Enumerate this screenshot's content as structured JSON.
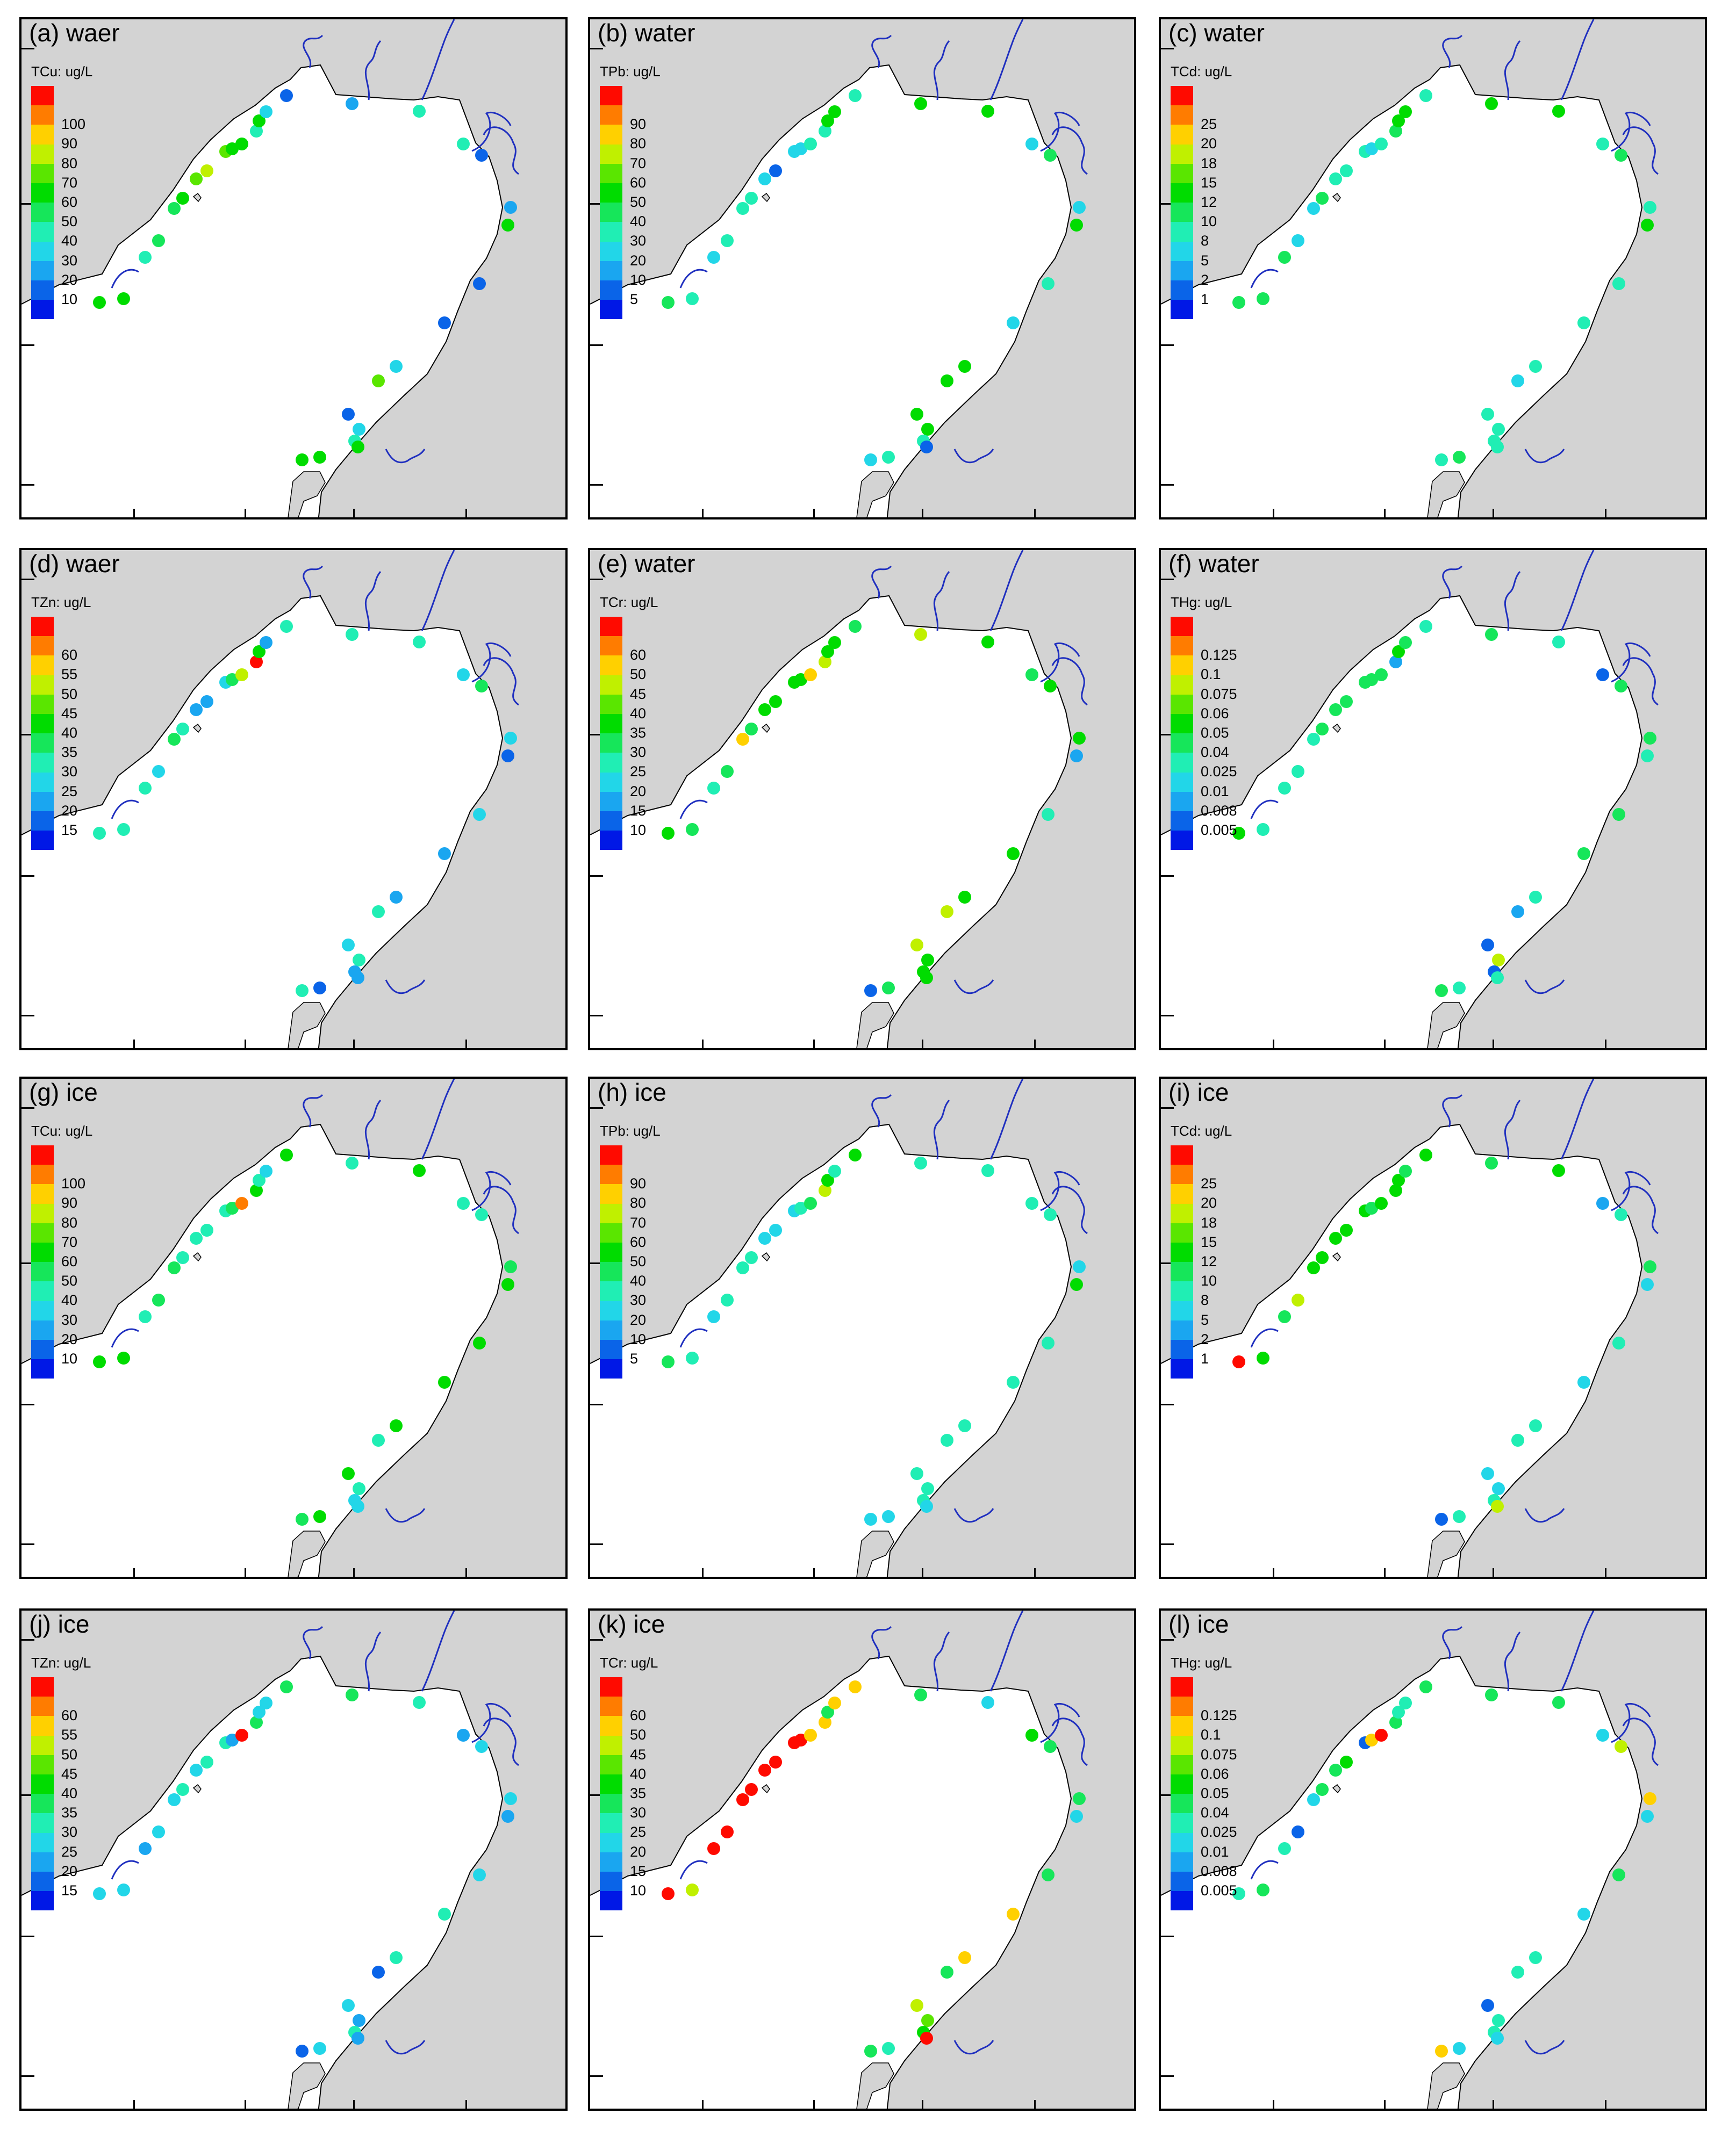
{
  "colors": {
    "land": "#d3d3d3",
    "sea": "#ffffff",
    "coast": "#000000",
    "river": "#1f2fbf",
    "legend_ramp": [
      "#0018e6",
      "#0a64e8",
      "#1aa6f0",
      "#22d6e8",
      "#20eeb4",
      "#16e65a",
      "#00dc00",
      "#5ae600",
      "#c0f000",
      "#ffd000",
      "#ff7c00",
      "#ff0a00"
    ]
  },
  "panels": [
    {
      "title": "(a) waer",
      "variable": "TCu: ug/L",
      "legend_labels": [
        "10",
        "20",
        "30",
        "40",
        "50",
        "60",
        "70",
        "80",
        "90",
        "100"
      ]
    },
    {
      "title": "(b) water",
      "variable": "TPb: ug/L",
      "legend_labels": [
        "5",
        "10",
        "20",
        "30",
        "40",
        "50",
        "60",
        "70",
        "80",
        "90"
      ]
    },
    {
      "title": "(c) water",
      "variable": "TCd: ug/L",
      "legend_labels": [
        "1",
        "2",
        "5",
        "8",
        "10",
        "12",
        "15",
        "18",
        "20",
        "25"
      ]
    },
    {
      "title": "(d) waer",
      "variable": "TZn: ug/L",
      "legend_labels": [
        "15",
        "20",
        "25",
        "30",
        "35",
        "40",
        "45",
        "50",
        "55",
        "60"
      ]
    },
    {
      "title": "(e) water",
      "variable": "TCr: ug/L",
      "legend_labels": [
        "10",
        "15",
        "20",
        "25",
        "30",
        "35",
        "40",
        "45",
        "50",
        "60"
      ]
    },
    {
      "title": "(f) water",
      "variable": "THg: ug/L",
      "legend_labels": [
        "0.005",
        "0.008",
        "0.01",
        "0.025",
        "0.04",
        "0.05",
        "0.06",
        "0.075",
        "0.1",
        "0.125"
      ]
    },
    {
      "title": "(g) ice",
      "variable": "TCu: ug/L",
      "legend_labels": [
        "10",
        "20",
        "30",
        "40",
        "50",
        "60",
        "70",
        "80",
        "90",
        "100"
      ]
    },
    {
      "title": "(h) ice",
      "variable": "TPb: ug/L",
      "legend_labels": [
        "5",
        "10",
        "20",
        "30",
        "40",
        "50",
        "60",
        "70",
        "80",
        "90"
      ]
    },
    {
      "title": "(i) ice",
      "variable": "TCd: ug/L",
      "legend_labels": [
        "1",
        "2",
        "5",
        "8",
        "10",
        "12",
        "15",
        "18",
        "20",
        "25"
      ]
    },
    {
      "title": "(j) ice",
      "variable": "TZn: ug/L",
      "legend_labels": [
        "15",
        "20",
        "25",
        "30",
        "35",
        "40",
        "45",
        "50",
        "55",
        "60"
      ]
    },
    {
      "title": "(k) ice",
      "variable": "TCr: ug/L",
      "legend_labels": [
        "10",
        "15",
        "20",
        "25",
        "30",
        "35",
        "40",
        "45",
        "50",
        "60"
      ]
    },
    {
      "title": "(l) ice",
      "variable": "THg: ug/L",
      "legend_labels": [
        "0.005",
        "0.008",
        "0.01",
        "0.025",
        "0.04",
        "0.05",
        "0.06",
        "0.075",
        "0.1",
        "0.125"
      ]
    }
  ],
  "station_levels": [
    [
      6,
      6,
      4,
      5,
      5,
      6,
      7,
      8,
      7,
      6,
      6,
      4,
      6,
      3,
      1,
      2,
      4,
      4,
      1,
      2,
      6,
      1,
      1,
      3,
      7,
      1,
      3,
      4,
      6,
      6,
      6
    ],
    [
      5,
      4,
      3,
      4,
      4,
      4,
      3,
      1,
      3,
      3,
      4,
      4,
      6,
      6,
      4,
      6,
      6,
      3,
      5,
      3,
      6,
      4,
      3,
      6,
      6,
      6,
      6,
      4,
      1,
      3,
      4
    ],
    [
      5,
      5,
      5,
      3,
      3,
      5,
      4,
      4,
      4,
      3,
      4,
      5,
      6,
      6,
      4,
      6,
      6,
      4,
      5,
      4,
      6,
      4,
      4,
      4,
      3,
      4,
      4,
      4,
      4,
      4,
      5
    ],
    [
      4,
      4,
      4,
      3,
      5,
      4,
      2,
      2,
      3,
      5,
      8,
      11,
      6,
      2,
      4,
      4,
      4,
      3,
      5,
      3,
      1,
      3,
      2,
      2,
      4,
      3,
      4,
      2,
      2,
      4,
      1
    ],
    [
      6,
      5,
      4,
      5,
      9,
      5,
      6,
      6,
      6,
      6,
      9,
      8,
      6,
      6,
      5,
      8,
      6,
      5,
      6,
      6,
      2,
      4,
      6,
      6,
      8,
      8,
      6,
      6,
      6,
      1,
      5
    ],
    [
      6,
      4,
      4,
      4,
      4,
      5,
      5,
      5,
      5,
      5,
      5,
      2,
      6,
      5,
      4,
      5,
      4,
      1,
      5,
      5,
      4,
      5,
      5,
      4,
      2,
      1,
      8,
      1,
      4,
      5,
      4
    ],
    [
      6,
      6,
      4,
      5,
      5,
      4,
      4,
      4,
      4,
      5,
      10,
      6,
      4,
      3,
      6,
      4,
      6,
      4,
      4,
      5,
      6,
      6,
      6,
      6,
      4,
      6,
      4,
      3,
      3,
      5,
      6
    ],
    [
      5,
      4,
      3,
      4,
      4,
      4,
      3,
      3,
      3,
      4,
      5,
      8,
      6,
      4,
      6,
      4,
      4,
      4,
      4,
      3,
      6,
      4,
      4,
      4,
      4,
      4,
      4,
      4,
      3,
      3,
      3
    ],
    [
      12,
      6,
      5,
      8,
      6,
      6,
      6,
      6,
      6,
      5,
      6,
      6,
      6,
      5,
      6,
      5,
      6,
      2,
      4,
      5,
      3,
      4,
      3,
      4,
      4,
      3,
      3,
      4,
      8,
      1,
      4
    ],
    [
      3,
      3,
      2,
      3,
      3,
      4,
      3,
      4,
      4,
      2,
      12,
      5,
      3,
      3,
      5,
      5,
      4,
      2,
      3,
      3,
      2,
      3,
      4,
      4,
      1,
      3,
      2,
      4,
      2,
      1,
      3
    ],
    [
      12,
      8,
      11,
      12,
      11,
      11,
      11,
      11,
      11,
      11,
      9,
      9,
      5,
      9,
      9,
      5,
      3,
      6,
      5,
      5,
      3,
      5,
      9,
      9,
      5,
      8,
      7,
      6,
      12,
      5,
      4
    ],
    [
      4,
      5,
      4,
      1,
      3,
      5,
      5,
      6,
      1,
      9,
      12,
      5,
      4,
      4,
      5,
      5,
      5,
      3,
      8,
      9,
      3,
      5,
      3,
      4,
      4,
      1,
      4,
      4,
      3,
      9,
      3
    ]
  ]
}
